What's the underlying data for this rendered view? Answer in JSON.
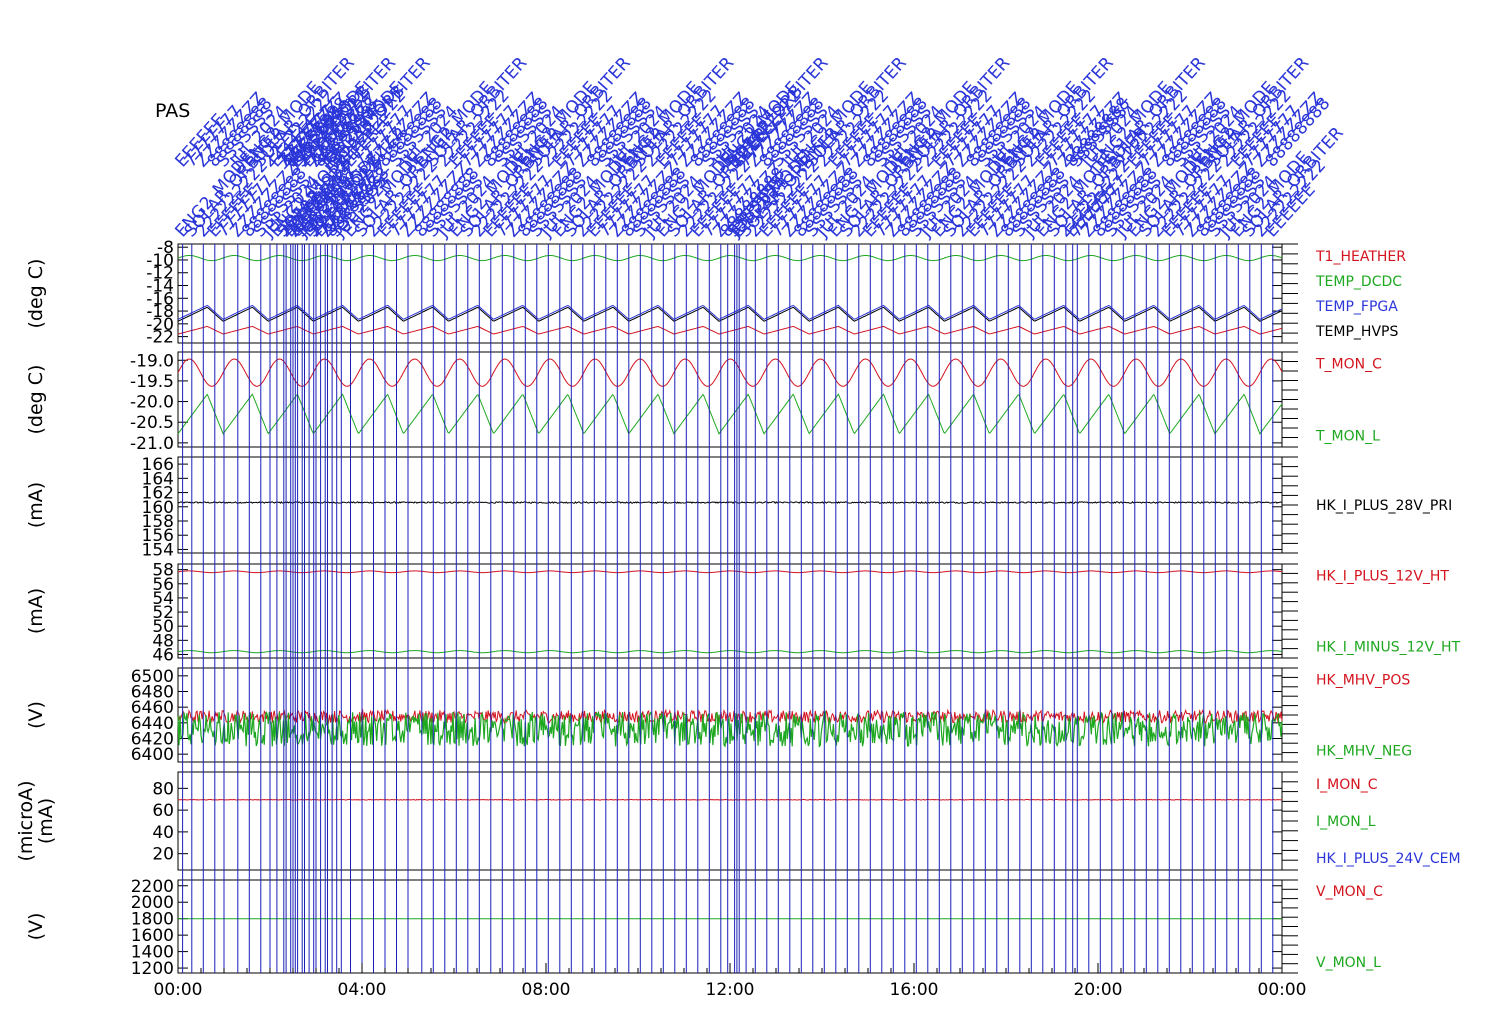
{
  "title": "PAS",
  "chart_data": {
    "type": "line",
    "x_ticks": [
      "00:00",
      "04:00",
      "08:00",
      "12:00",
      "16:00",
      "20:00",
      "00:00"
    ],
    "x_range_hours": [
      0,
      24
    ],
    "event_labels": [
      "ENG2_MODE",
      "SOLAR_ORBITER",
      "222222222",
      "EEEEEE",
      "7777777",
      "ZZZZZZZZ",
      "88888888",
      "SSSSSSS",
      "JUL 2024"
    ],
    "event_times_hours": [
      0.1,
      0.3,
      0.55,
      0.8,
      1.0,
      1.3,
      1.55,
      1.8,
      2.0,
      2.15,
      2.3,
      2.35,
      2.45,
      2.5,
      2.55,
      2.6,
      2.7,
      2.75,
      2.85,
      2.95,
      3.0,
      3.1,
      3.2,
      3.25,
      3.35,
      3.45,
      3.55,
      3.75,
      4.0,
      4.25,
      4.5,
      4.75,
      5.0,
      5.3,
      5.55,
      5.8,
      6.05,
      6.3,
      6.55,
      6.8,
      7.05,
      7.3,
      7.55,
      7.8,
      8.05,
      8.3,
      8.55,
      8.8,
      9.05,
      9.3,
      9.55,
      9.8,
      10.05,
      10.3,
      10.55,
      10.8,
      11.05,
      11.3,
      11.55,
      11.8,
      11.95,
      12.1,
      12.15,
      12.2,
      12.35,
      12.55,
      12.8,
      13.05,
      13.3,
      13.55,
      13.8,
      14.05,
      14.3,
      14.55,
      14.8,
      15.05,
      15.3,
      15.55,
      15.8,
      16.05,
      16.3,
      16.55,
      16.8,
      17.05,
      17.3,
      17.55,
      17.8,
      18.05,
      18.3,
      18.55,
      18.8,
      19.05,
      19.3,
      19.45,
      19.55,
      19.8,
      20.05,
      20.3,
      20.55,
      20.8,
      21.05,
      21.3,
      21.55,
      21.8,
      22.05,
      22.3,
      22.55,
      22.8,
      23.05,
      23.3,
      23.55,
      23.8
    ],
    "panels": [
      {
        "ylabel": "(deg C)",
        "yticks": [
          "-8",
          "-10",
          "-12",
          "-14",
          "-16",
          "-18",
          "-20",
          "-22"
        ],
        "ylim": [
          -23,
          -7.5
        ],
        "series": [
          {
            "name": "T1_HEATHER",
            "color": "#d4141e",
            "mean": -21.0,
            "amp": 0.6,
            "period_h": 0.98,
            "shape": "saw"
          },
          {
            "name": "TEMP_DCDC",
            "color": "#1ea820",
            "mean": -9.7,
            "amp": 0.4,
            "period_h": 0.98,
            "shape": "sine"
          },
          {
            "name": "TEMP_FPGA",
            "color": "#2b36d9",
            "mean": -18.2,
            "amp": 1.1,
            "period_h": 0.98,
            "shape": "saw"
          },
          {
            "name": "TEMP_HVPS",
            "color": "#000000",
            "mean": -18.5,
            "amp": 1.1,
            "period_h": 0.98,
            "shape": "saw"
          }
        ]
      },
      {
        "ylabel": "(deg C)",
        "yticks": [
          "-19.0",
          "-19.5",
          "-20.0",
          "-20.5",
          "-21.0"
        ],
        "ylim": [
          -21.1,
          -18.8
        ],
        "series": [
          {
            "name": "T_MON_C",
            "color": "#d4141e",
            "mean": -19.3,
            "amp": 0.33,
            "period_h": 0.98,
            "shape": "sine"
          },
          {
            "name": "T_MON_L",
            "color": "#1ea820",
            "mean": -20.3,
            "amp": 0.48,
            "period_h": 0.98,
            "shape": "saw"
          }
        ]
      },
      {
        "ylabel": "(mA)",
        "yticks": [
          "166",
          "164",
          "162",
          "160",
          "158",
          "156",
          "154"
        ],
        "ylim": [
          153.5,
          167
        ],
        "series": [
          {
            "name": "HK_I_PLUS_28V_PRI",
            "color": "#000000",
            "mean": 160.6,
            "amp": 0.1,
            "period_h": 0.5,
            "shape": "noise"
          }
        ]
      },
      {
        "ylabel": "(mA)",
        "yticks": [
          "58",
          "56",
          "54",
          "52",
          "50",
          "48",
          "46"
        ],
        "ylim": [
          45.5,
          58.8
        ],
        "series": [
          {
            "name": "HK_I_PLUS_12V_HT",
            "color": "#d4141e",
            "mean": 57.7,
            "amp": 0.12,
            "period_h": 0.98,
            "shape": "sine"
          },
          {
            "name": "HK_I_MINUS_12V_HT",
            "color": "#1ea820",
            "mean": 46.4,
            "amp": 0.15,
            "period_h": 0.98,
            "shape": "sine"
          }
        ]
      },
      {
        "ylabel": "(V)",
        "yticks": [
          "6500",
          "6480",
          "6460",
          "6440",
          "6420",
          "6400"
        ],
        "ylim": [
          6390,
          6510
        ],
        "series": [
          {
            "name": "HK_MHV_POS",
            "color": "#d4141e",
            "mean": 6448,
            "amp": 8,
            "period_h": 2.0,
            "shape": "noise"
          },
          {
            "name": "HK_MHV_NEG",
            "color": "#1ea820",
            "mean": 6432,
            "amp": 22,
            "period_h": 2.0,
            "shape": "spiky"
          }
        ]
      },
      {
        "ylabel": "(microA)\n(mA)",
        "yticks": [
          "80",
          "60",
          "40",
          "20"
        ],
        "ylim": [
          5,
          95
        ],
        "series": [
          {
            "name": "I_MON_C",
            "color": "#d4141e",
            "mean": 69.5,
            "amp": 0.3,
            "period_h": 0.5,
            "shape": "noise"
          },
          {
            "name": "I_MON_L",
            "color": "#1ea820",
            "mean": null,
            "amp": 0,
            "period_h": 1,
            "shape": "none"
          },
          {
            "name": "HK_I_PLUS_24V_CEM",
            "color": "#2b36d9",
            "mean": null,
            "amp": 0,
            "period_h": 1,
            "shape": "none"
          }
        ]
      },
      {
        "ylabel": "(V)",
        "yticks": [
          "2200",
          "2000",
          "1800",
          "1600",
          "1400",
          "1200"
        ],
        "ylim": [
          1140,
          2270
        ],
        "series": [
          {
            "name": "V_MON_C",
            "color": "#d4141e",
            "mean": null,
            "amp": 0,
            "period_h": 1,
            "shape": "none"
          },
          {
            "name": "V_MON_L",
            "color": "#1ea820",
            "mean": 1800,
            "amp": 0,
            "period_h": 1,
            "shape": "flat"
          }
        ]
      }
    ]
  }
}
